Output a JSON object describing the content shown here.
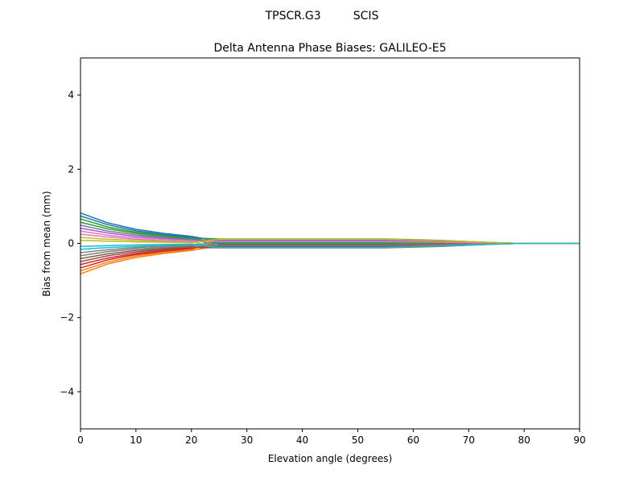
{
  "chart_data": {
    "type": "line",
    "suptitle": "TPSCR.G3         SCIS",
    "title": "Delta Antenna Phase Biases: GALILEO-E5",
    "xlabel": "Elevation angle (degrees)",
    "ylabel": "Bias from mean (mm)",
    "xlim": [
      0,
      90
    ],
    "ylim": [
      -5,
      5
    ],
    "xticks": [
      0,
      10,
      20,
      30,
      40,
      50,
      60,
      70,
      80,
      90
    ],
    "yticks": [
      -4,
      -2,
      0,
      2,
      4
    ],
    "grid": false,
    "colors": [
      "#1f77b4",
      "#ff7f0e",
      "#2ca02c",
      "#d62728",
      "#9467bd",
      "#8c564b",
      "#e377c2",
      "#7f7f7f",
      "#bcbd22",
      "#17becf"
    ],
    "x": [
      0,
      5,
      10,
      15,
      20,
      25,
      30,
      35,
      40,
      45,
      50,
      55,
      60,
      65,
      70,
      75,
      80,
      85,
      90
    ],
    "series": [
      {
        "values": [
          0.82,
          0.55,
          0.38,
          0.27,
          0.19,
          0.06,
          0.06,
          0.06,
          0.06,
          0.06,
          0.06,
          0.06,
          0.05,
          0.04,
          0.03,
          0.01,
          0,
          0,
          0
        ]
      },
      {
        "values": [
          -0.82,
          -0.55,
          -0.38,
          -0.27,
          -0.19,
          -0.07,
          -0.07,
          -0.07,
          -0.07,
          -0.07,
          -0.07,
          -0.07,
          -0.06,
          -0.05,
          -0.03,
          -0.01,
          0,
          0,
          0
        ]
      },
      {
        "values": [
          0.66,
          0.44,
          0.3,
          0.22,
          0.15,
          0.12,
          0.12,
          0.12,
          0.12,
          0.12,
          0.12,
          0.12,
          0.1,
          0.08,
          0.05,
          0.02,
          0,
          0,
          0
        ]
      },
      {
        "values": [
          -0.66,
          -0.44,
          -0.3,
          -0.22,
          -0.15,
          0.04,
          0.04,
          0.04,
          0.04,
          0.04,
          0.04,
          0.04,
          0.03,
          0.02,
          0.02,
          0.01,
          0,
          0,
          0
        ]
      },
      {
        "values": [
          0.49,
          0.33,
          0.23,
          0.16,
          0.11,
          -0.06,
          -0.06,
          -0.06,
          -0.06,
          -0.06,
          -0.06,
          -0.06,
          -0.05,
          -0.04,
          -0.03,
          -0.01,
          0,
          0,
          0
        ]
      },
      {
        "values": [
          -0.49,
          -0.33,
          -0.23,
          -0.16,
          -0.11,
          -0.12,
          -0.12,
          -0.12,
          -0.12,
          -0.12,
          -0.12,
          -0.12,
          -0.1,
          -0.08,
          -0.05,
          -0.02,
          0,
          0,
          0
        ]
      },
      {
        "values": [
          0.33,
          0.22,
          0.15,
          0.11,
          0.08,
          0.1,
          0.1,
          0.1,
          0.1,
          0.1,
          0.1,
          0.1,
          0.08,
          0.06,
          0.04,
          0.02,
          0,
          0,
          0
        ]
      },
      {
        "values": [
          -0.33,
          -0.22,
          -0.15,
          -0.11,
          -0.08,
          0.07,
          0.07,
          0.07,
          0.07,
          0.07,
          0.07,
          0.07,
          0.06,
          0.05,
          0.03,
          0.01,
          0,
          0,
          0
        ]
      },
      {
        "values": [
          0.16,
          0.11,
          0.08,
          0.05,
          0.04,
          -0.1,
          -0.1,
          -0.1,
          -0.1,
          -0.1,
          -0.1,
          -0.1,
          -0.08,
          -0.06,
          -0.04,
          -0.02,
          0,
          0,
          0
        ]
      },
      {
        "values": [
          -0.16,
          -0.11,
          -0.08,
          -0.05,
          -0.04,
          0.02,
          0.02,
          0.02,
          0.02,
          0.02,
          0.02,
          0.02,
          0.02,
          0.02,
          0.01,
          0,
          0,
          0,
          0
        ]
      },
      {
        "values": [
          0.74,
          0.5,
          0.34,
          0.24,
          0.17,
          -0.02,
          -0.02,
          -0.02,
          -0.02,
          -0.02,
          -0.02,
          -0.02,
          -0.02,
          -0.02,
          -0.01,
          0,
          0,
          0,
          0
        ]
      },
      {
        "values": [
          -0.74,
          -0.5,
          -0.34,
          -0.24,
          -0.17,
          0.11,
          0.11,
          0.11,
          0.11,
          0.11,
          0.11,
          0.11,
          0.09,
          0.07,
          0.05,
          0.02,
          0,
          0,
          0
        ]
      },
      {
        "values": [
          0.57,
          0.39,
          0.27,
          0.19,
          0.13,
          0.01,
          0.01,
          0.01,
          0.01,
          0.01,
          0.01,
          0.01,
          0.01,
          0.01,
          0,
          0,
          0,
          0,
          0
        ]
      },
      {
        "values": [
          -0.57,
          -0.39,
          -0.27,
          -0.19,
          -0.13,
          -0.04,
          -0.04,
          -0.04,
          -0.04,
          -0.04,
          -0.04,
          -0.04,
          -0.03,
          -0.02,
          -0.02,
          -0.01,
          0,
          0,
          0
        ]
      },
      {
        "values": [
          0.41,
          0.28,
          0.19,
          0.14,
          0.1,
          0.08,
          0.08,
          0.08,
          0.08,
          0.08,
          0.08,
          0.08,
          0.07,
          0.06,
          0.04,
          0.01,
          0,
          0,
          0
        ]
      },
      {
        "values": [
          -0.41,
          -0.28,
          -0.19,
          -0.14,
          -0.1,
          -0.08,
          -0.08,
          -0.08,
          -0.08,
          -0.08,
          -0.08,
          -0.08,
          -0.07,
          -0.06,
          -0.04,
          -0.01,
          0,
          0,
          0
        ]
      },
      {
        "values": [
          0.25,
          0.17,
          0.11,
          0.08,
          0.06,
          0.05,
          0.05,
          0.05,
          0.05,
          0.05,
          0.05,
          0.05,
          0.04,
          0.03,
          0.02,
          0.01,
          0,
          0,
          0
        ]
      },
      {
        "values": [
          -0.25,
          -0.17,
          -0.11,
          -0.08,
          -0.06,
          -0.05,
          -0.05,
          -0.05,
          -0.05,
          -0.05,
          -0.05,
          -0.05,
          -0.04,
          -0.03,
          -0.02,
          -0.01,
          0,
          0,
          0
        ]
      },
      {
        "values": [
          0.08,
          0.06,
          0.04,
          0.03,
          0.02,
          0.11,
          0.11,
          0.11,
          0.11,
          0.11,
          0.11,
          0.11,
          0.09,
          0.07,
          0.05,
          0.02,
          0,
          0,
          0
        ]
      },
      {
        "values": [
          -0.08,
          -0.06,
          -0.04,
          -0.03,
          -0.02,
          -0.11,
          -0.11,
          -0.11,
          -0.11,
          -0.11,
          -0.11,
          -0.11,
          -0.09,
          -0.07,
          -0.05,
          -0.02,
          0,
          0,
          0
        ]
      }
    ]
  }
}
